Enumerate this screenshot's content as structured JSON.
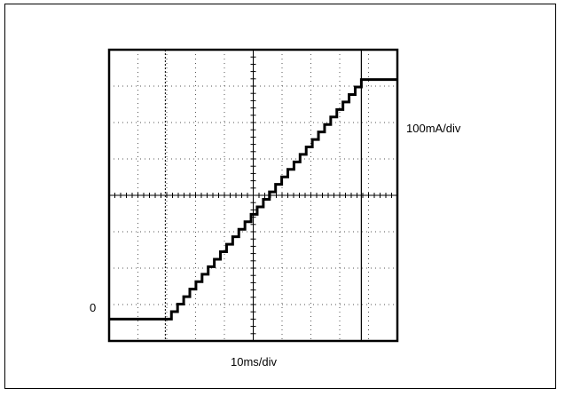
{
  "chart_data": {
    "type": "line",
    "title": "",
    "xlabel": "10ms/div",
    "ylabel": "",
    "y_scale_label": "100mA/div",
    "zero_label": "0",
    "x_divisions": 10,
    "y_divisions": 8,
    "xlim": [
      0,
      100
    ],
    "ylim": [
      0,
      8
    ],
    "grid": true,
    "staircase_steps": 32,
    "series": [
      {
        "name": "",
        "x": [
          0,
          19.5,
          21,
          22,
          24.5,
          27,
          30,
          33,
          36,
          39,
          42,
          45,
          48,
          51,
          54,
          57,
          60,
          63,
          66,
          69,
          72,
          75,
          78,
          81,
          84,
          86.5,
          87.5,
          95,
          100
        ],
        "y": [
          0.6,
          0.6,
          0.75,
          0.85,
          1.05,
          1.3,
          1.6,
          1.9,
          2.2,
          2.5,
          2.8,
          3.1,
          3.4,
          3.7,
          4.0,
          4.3,
          4.6,
          4.9,
          5.2,
          5.5,
          5.8,
          6.1,
          6.4,
          6.7,
          7.0,
          7.15,
          7.18,
          7.18,
          7.18
        ]
      }
    ],
    "cursors_x": [
      19.5,
      87.5
    ]
  }
}
